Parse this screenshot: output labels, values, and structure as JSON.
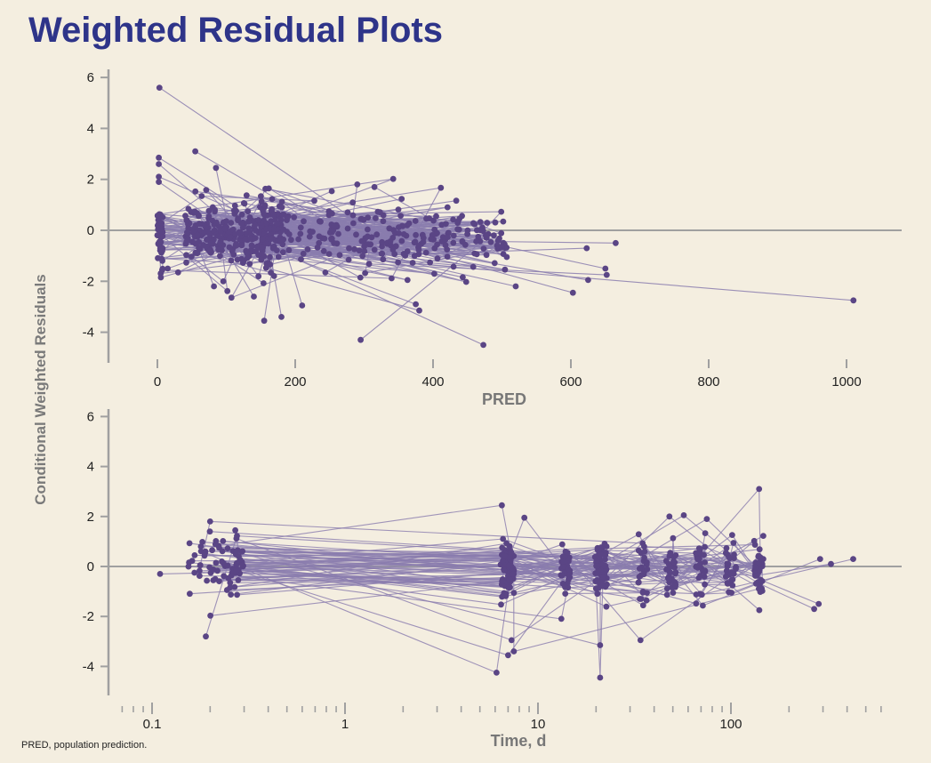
{
  "title": "Weighted Residual Plots",
  "footnote": "PRED, population prediction.",
  "colors": {
    "title": "#2e3489",
    "point": "#5a4585",
    "line": "#8a7cae",
    "axis": "#a0a0a0",
    "background": "#f4eee0"
  },
  "chart_data": [
    {
      "type": "scatter",
      "title": "",
      "xlabel": "PRED",
      "ylabel": "Conditional Weighted Residuals",
      "xscale": "linear",
      "xlim": [
        -70,
        1080
      ],
      "ylim": [
        -5,
        6
      ],
      "xticks": [
        0,
        200,
        400,
        600,
        800,
        1000
      ],
      "xtick_labels": [
        "0",
        "200",
        "400",
        "600",
        "800",
        "1000"
      ],
      "yticks": [
        6,
        4,
        2,
        0,
        -2,
        -4
      ],
      "ytick_labels": [
        "6",
        "4",
        "2",
        "0",
        "-2",
        "-4"
      ],
      "reference_line_y": 0,
      "connected_by_subject": true,
      "highlighted_points": [
        {
          "x": 3,
          "y": 5.6
        },
        {
          "x": 2,
          "y": 2.85
        },
        {
          "x": 2,
          "y": 2.6
        },
        {
          "x": 2,
          "y": 2.1
        },
        {
          "x": 2,
          "y": 1.9
        },
        {
          "x": 55,
          "y": 3.1
        },
        {
          "x": 85,
          "y": 2.45
        },
        {
          "x": 5,
          "y": -1.85
        },
        {
          "x": 15,
          "y": -1.5
        },
        {
          "x": 30,
          "y": -1.65
        },
        {
          "x": 82,
          "y": -2.2
        },
        {
          "x": 140,
          "y": -2.6
        },
        {
          "x": 155,
          "y": -3.55
        },
        {
          "x": 180,
          "y": -3.4
        },
        {
          "x": 210,
          "y": -2.95
        },
        {
          "x": 295,
          "y": -4.3
        },
        {
          "x": 290,
          "y": 1.8
        },
        {
          "x": 315,
          "y": 1.7
        },
        {
          "x": 375,
          "y": -2.9
        },
        {
          "x": 380,
          "y": -3.15
        },
        {
          "x": 473,
          "y": -4.5
        },
        {
          "x": 520,
          "y": -2.2
        },
        {
          "x": 603,
          "y": -2.45
        },
        {
          "x": 623,
          "y": -0.7
        },
        {
          "x": 625,
          "y": -1.95
        },
        {
          "x": 650,
          "y": -1.5
        },
        {
          "x": 652,
          "y": -1.75
        },
        {
          "x": 665,
          "y": -0.5
        },
        {
          "x": 1010,
          "y": -2.75
        }
      ],
      "n_points_approx": 620
    },
    {
      "type": "scatter",
      "title": "",
      "xlabel": "Time, d",
      "ylabel": "Conditional Weighted Residuals",
      "xscale": "log",
      "xlim": [
        0.065,
        600
      ],
      "ylim": [
        -5,
        6
      ],
      "xticks": [
        0.1,
        1,
        10,
        100
      ],
      "xtick_labels": [
        "0.1",
        "1",
        "10",
        "100"
      ],
      "yticks": [
        6,
        4,
        2,
        0,
        -2,
        -4
      ],
      "ytick_labels": [
        "6",
        "4",
        "2",
        "0",
        "-2",
        "-4"
      ],
      "reference_line_y": 0,
      "connected_by_subject": true,
      "time_clusters_d": [
        0.11,
        0.2,
        0.3,
        7,
        8,
        14,
        21,
        35,
        49,
        70,
        100,
        140,
        300,
        420
      ],
      "highlighted_points": [
        {
          "x": 0.11,
          "y": -0.3
        },
        {
          "x": 0.2,
          "y": 1.8
        },
        {
          "x": 0.27,
          "y": 1.45
        },
        {
          "x": 0.19,
          "y": -2.8
        },
        {
          "x": 6.5,
          "y": 2.45
        },
        {
          "x": 8.5,
          "y": 1.95
        },
        {
          "x": 6.1,
          "y": -4.25
        },
        {
          "x": 7,
          "y": -3.55
        },
        {
          "x": 7.3,
          "y": -2.95
        },
        {
          "x": 7.5,
          "y": -3.4
        },
        {
          "x": 21,
          "y": -4.45
        },
        {
          "x": 21,
          "y": -3.15
        },
        {
          "x": 34,
          "y": -2.95
        },
        {
          "x": 48,
          "y": 2.0
        },
        {
          "x": 57,
          "y": 2.05
        },
        {
          "x": 75,
          "y": 1.9
        },
        {
          "x": 140,
          "y": 3.1
        },
        {
          "x": 290,
          "y": 0.3
        },
        {
          "x": 330,
          "y": 0.1
        },
        {
          "x": 430,
          "y": 0.3
        },
        {
          "x": 270,
          "y": -1.7
        },
        {
          "x": 285,
          "y": -1.5
        }
      ],
      "n_points_approx": 640
    }
  ]
}
